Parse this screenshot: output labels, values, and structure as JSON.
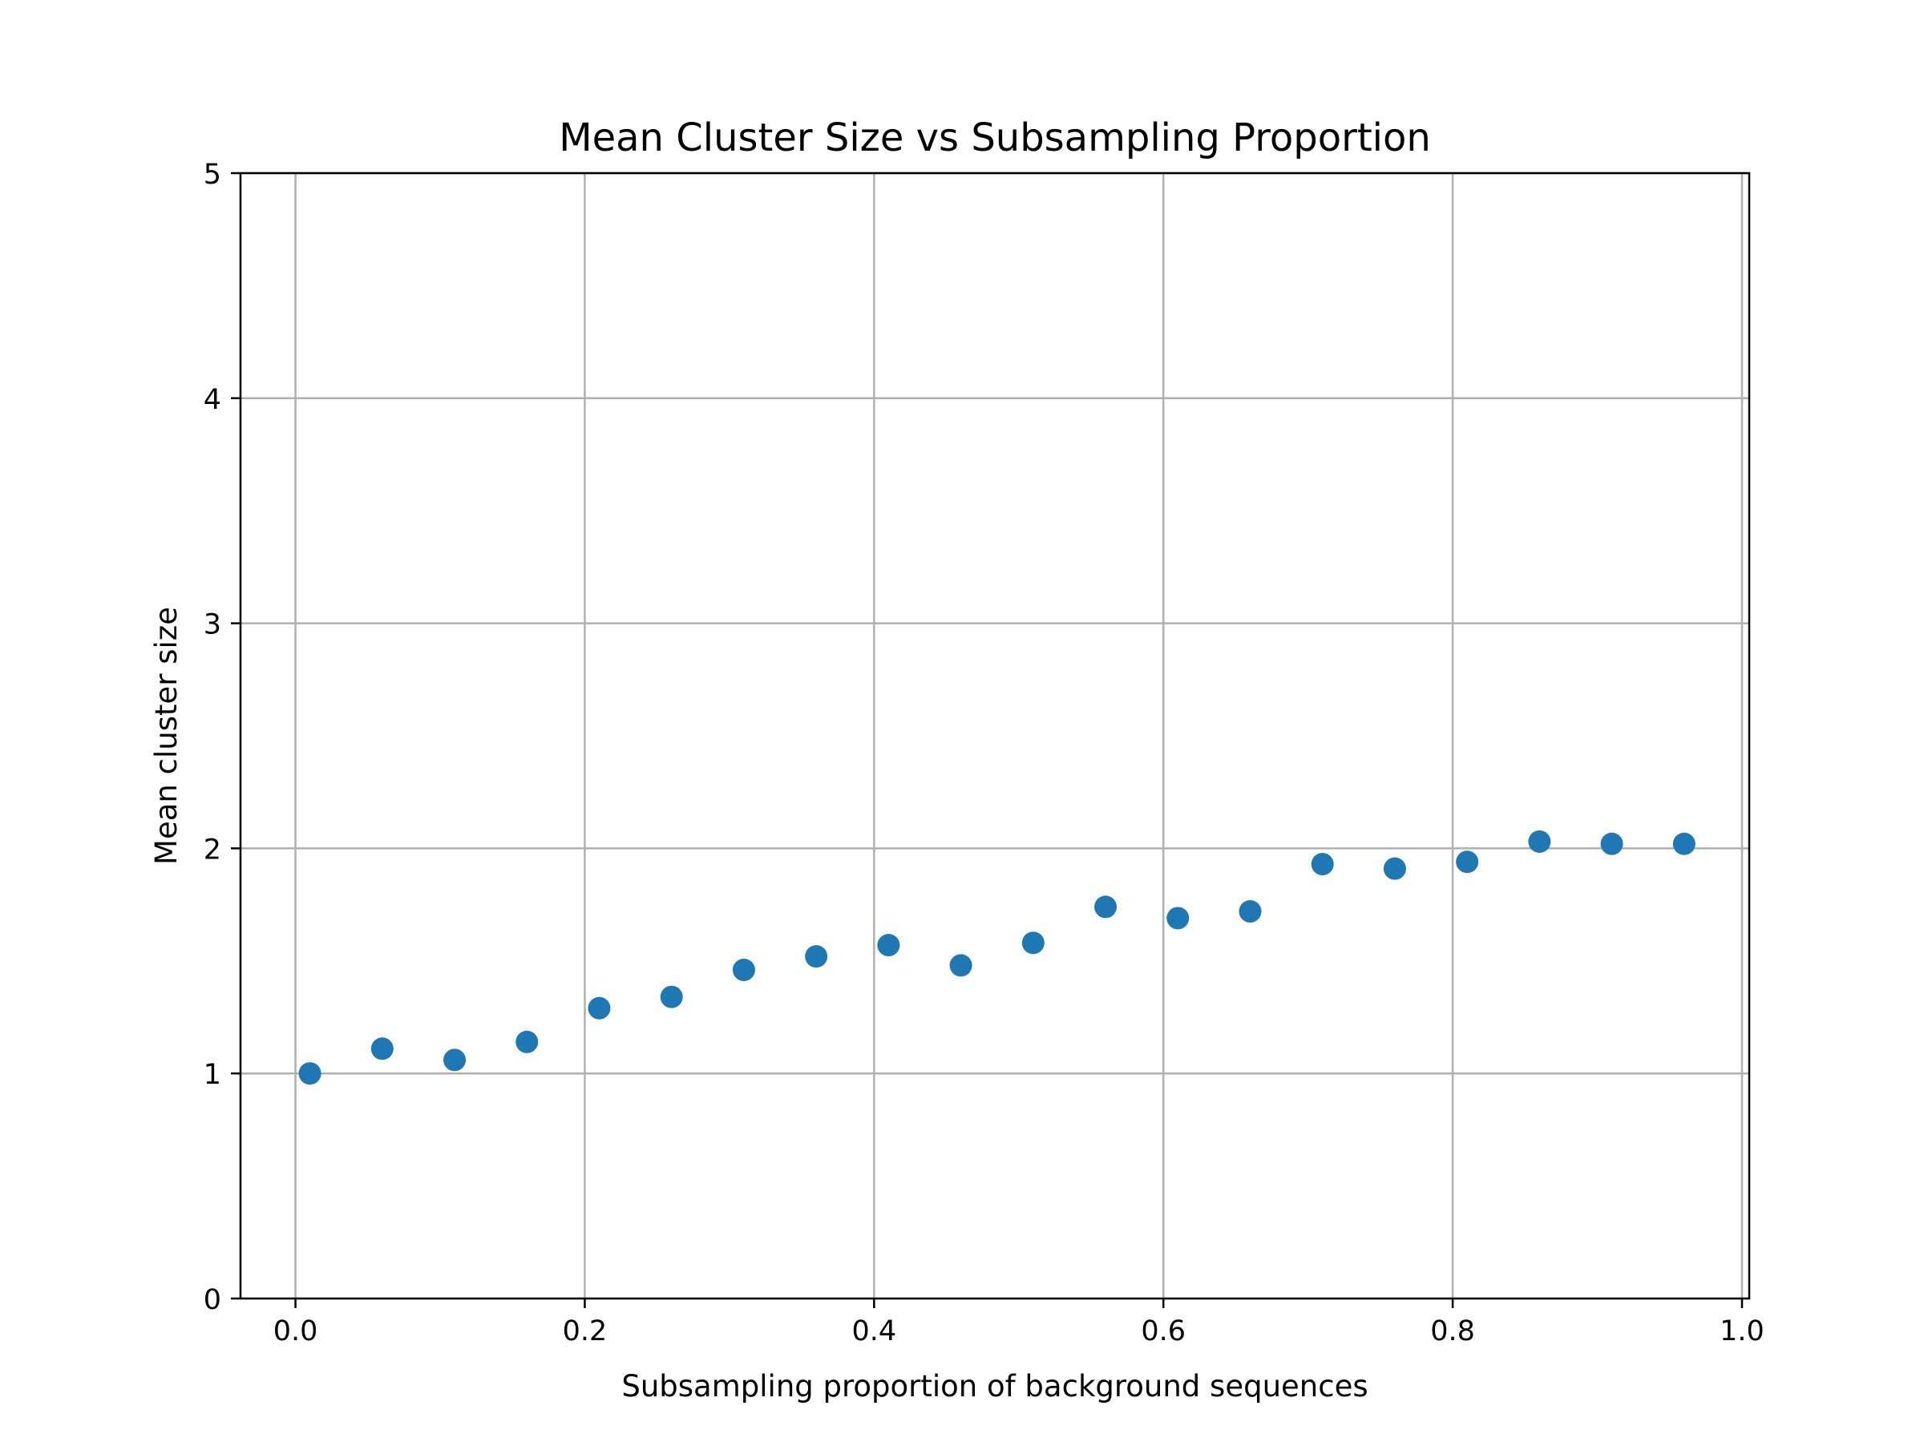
{
  "chart_data": {
    "type": "scatter",
    "title": "Mean Cluster Size vs Subsampling Proportion",
    "xlabel": "Subsampling proportion of background sequences",
    "ylabel": "Mean cluster size",
    "xlim": [
      -0.038,
      1.005
    ],
    "ylim": [
      0,
      5
    ],
    "xticks": [
      0.0,
      0.2,
      0.4,
      0.6,
      0.8,
      1.0
    ],
    "xtick_labels": [
      "0.0",
      "0.2",
      "0.4",
      "0.6",
      "0.8",
      "1.0"
    ],
    "yticks": [
      0,
      1,
      2,
      3,
      4,
      5
    ],
    "ytick_labels": [
      "0",
      "1",
      "2",
      "3",
      "4",
      "5"
    ],
    "grid": true,
    "marker_color": "#1f77b4",
    "series": [
      {
        "x": [
          0.01,
          0.06,
          0.11,
          0.16,
          0.21,
          0.26,
          0.31,
          0.36,
          0.41,
          0.46,
          0.51,
          0.56,
          0.61,
          0.66,
          0.71,
          0.76,
          0.81,
          0.86,
          0.91,
          0.96
        ],
        "y": [
          1.0,
          1.11,
          1.06,
          1.14,
          1.29,
          1.34,
          1.46,
          1.52,
          1.57,
          1.48,
          1.58,
          1.74,
          1.69,
          1.72,
          1.93,
          1.91,
          1.94,
          2.03,
          2.02,
          2.02
        ]
      }
    ]
  }
}
